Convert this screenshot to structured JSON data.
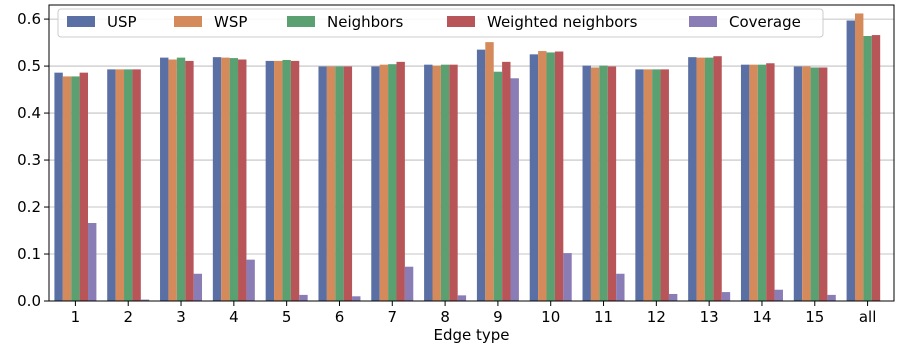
{
  "chart_data": {
    "type": "bar",
    "title": "",
    "xlabel": "Edge type",
    "ylabel": "",
    "ylim": [
      0,
      0.63
    ],
    "yticks": [
      0.0,
      0.1,
      0.2,
      0.3,
      0.4,
      0.5,
      0.6
    ],
    "ytick_labels": [
      "0.0",
      "0.1",
      "0.2",
      "0.3",
      "0.4",
      "0.5",
      "0.6"
    ],
    "grid": "horizontal",
    "legend_position": "top",
    "categories": [
      "1",
      "2",
      "3",
      "4",
      "5",
      "6",
      "7",
      "8",
      "9",
      "10",
      "11",
      "12",
      "13",
      "14",
      "15",
      "all"
    ],
    "series": [
      {
        "name": "USP",
        "color": "#5a6fa3",
        "values": [
          0.486,
          0.493,
          0.518,
          0.519,
          0.511,
          0.499,
          0.499,
          0.503,
          0.535,
          0.525,
          0.501,
          0.493,
          0.519,
          0.503,
          0.499,
          0.597
        ]
      },
      {
        "name": "WSP",
        "color": "#d48a5a",
        "values": [
          0.478,
          0.493,
          0.514,
          0.518,
          0.511,
          0.499,
          0.503,
          0.501,
          0.551,
          0.532,
          0.497,
          0.493,
          0.518,
          0.503,
          0.499,
          0.612
        ]
      },
      {
        "name": "Neighbors",
        "color": "#5aa070",
        "values": [
          0.478,
          0.493,
          0.518,
          0.517,
          0.513,
          0.499,
          0.504,
          0.503,
          0.488,
          0.529,
          0.501,
          0.493,
          0.518,
          0.503,
          0.497,
          0.564
        ]
      },
      {
        "name": "Weighted neighbors",
        "color": "#b85558",
        "values": [
          0.486,
          0.493,
          0.511,
          0.514,
          0.511,
          0.499,
          0.509,
          0.503,
          0.509,
          0.531,
          0.499,
          0.493,
          0.521,
          0.506,
          0.497,
          0.566
        ]
      },
      {
        "name": "Coverage",
        "color": "#8a7db5",
        "values": [
          0.166,
          0.003,
          0.058,
          0.088,
          0.013,
          0.01,
          0.073,
          0.012,
          0.474,
          0.102,
          0.058,
          0.015,
          0.019,
          0.024,
          0.013,
          null
        ]
      }
    ]
  }
}
